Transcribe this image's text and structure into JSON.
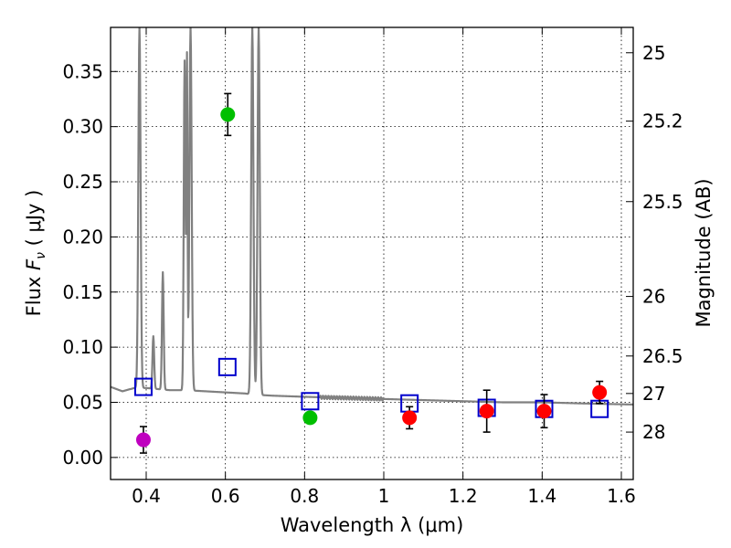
{
  "chart_data": {
    "type": "scatter",
    "title": "",
    "xlabel": "Wavelength  λ (μm)",
    "ylabel": "Flux  F_ν  ( μJy )",
    "ylabel_parts": {
      "prefix": "Flux  ",
      "symbol": "F",
      "subscript": "ν",
      "unit": "  ( μJy )"
    },
    "y2label": "Magnitude (AB)",
    "xlim": [
      0.31,
      1.63
    ],
    "ylim": [
      -0.02,
      0.39
    ],
    "grid": true,
    "grid_style": "dotted",
    "xticks": [
      {
        "value": 0.4,
        "label": "0.4"
      },
      {
        "value": 0.6,
        "label": "0.6"
      },
      {
        "value": 0.8,
        "label": "0.8"
      },
      {
        "value": 1.0,
        "label": "1"
      },
      {
        "value": 1.2,
        "label": "1.2"
      },
      {
        "value": 1.4,
        "label": "1.4"
      },
      {
        "value": 1.6,
        "label": "1.6"
      }
    ],
    "yticks": [
      {
        "value": 0.0,
        "label": "0.00"
      },
      {
        "value": 0.05,
        "label": "0.05"
      },
      {
        "value": 0.1,
        "label": "0.10"
      },
      {
        "value": 0.15,
        "label": "0.15"
      },
      {
        "value": 0.2,
        "label": "0.20"
      },
      {
        "value": 0.25,
        "label": "0.25"
      },
      {
        "value": 0.3,
        "label": "0.30"
      },
      {
        "value": 0.35,
        "label": "0.35"
      }
    ],
    "y2ticks": [
      {
        "flux": 0.367,
        "label": "25"
      },
      {
        "flux": 0.305,
        "label": "25.2"
      },
      {
        "flux": 0.232,
        "label": "25.5"
      },
      {
        "flux": 0.146,
        "label": "26"
      },
      {
        "flux": 0.092,
        "label": "26.5"
      },
      {
        "flux": 0.058,
        "label": "27"
      },
      {
        "flux": 0.023,
        "label": "28"
      }
    ],
    "series": [
      {
        "kind": "spectrum",
        "color": "#808080",
        "continuum": [
          [
            0.31,
            0.064
          ],
          [
            0.34,
            0.06
          ],
          [
            0.37,
            0.063
          ],
          [
            0.4,
            0.063
          ],
          [
            0.43,
            0.062
          ],
          [
            0.46,
            0.061
          ],
          [
            0.5,
            0.061
          ],
          [
            0.55,
            0.06
          ],
          [
            0.6,
            0.059
          ],
          [
            0.65,
            0.058
          ],
          [
            0.67,
            0.057
          ],
          [
            0.72,
            0.056
          ],
          [
            0.8,
            0.055
          ],
          [
            0.9,
            0.054
          ],
          [
            1.0,
            0.053
          ],
          [
            1.1,
            0.052
          ],
          [
            1.2,
            0.051
          ],
          [
            1.3,
            0.05
          ],
          [
            1.4,
            0.05
          ],
          [
            1.5,
            0.049
          ],
          [
            1.63,
            0.048
          ]
        ],
        "lines": [
          {
            "x": 0.383,
            "peak": 0.39,
            "width": 0.004
          },
          {
            "x": 0.418,
            "peak": 0.11,
            "width": 0.003
          },
          {
            "x": 0.442,
            "peak": 0.168,
            "width": 0.003
          },
          {
            "x": 0.497,
            "peak": 0.36,
            "width": 0.003
          },
          {
            "x": 0.503,
            "peak": 0.36,
            "width": 0.002
          },
          {
            "x": 0.512,
            "peak": 0.39,
            "width": 0.004
          },
          {
            "x": 0.668,
            "peak": 0.39,
            "width": 0.004
          },
          {
            "x": 0.684,
            "peak": 0.39,
            "width": 0.004
          }
        ]
      },
      {
        "kind": "model-photometry",
        "marker": "open-square",
        "color": "#0000cc",
        "points": [
          {
            "x": 0.393,
            "y": 0.064
          },
          {
            "x": 0.605,
            "y": 0.082
          },
          {
            "x": 0.814,
            "y": 0.051
          },
          {
            "x": 1.065,
            "y": 0.049
          },
          {
            "x": 1.26,
            "y": 0.045
          },
          {
            "x": 1.405,
            "y": 0.044
          },
          {
            "x": 1.545,
            "y": 0.044
          }
        ]
      },
      {
        "kind": "observed",
        "marker": "filled-circle",
        "color": "#bf00bf",
        "points": [
          {
            "x": 0.393,
            "y": 0.016,
            "err": 0.012
          }
        ]
      },
      {
        "kind": "observed",
        "marker": "filled-circle",
        "color": "#00bf00",
        "points": [
          {
            "x": 0.606,
            "y": 0.311,
            "err": 0.019
          },
          {
            "x": 0.814,
            "y": 0.036,
            "err": 0.005
          }
        ]
      },
      {
        "kind": "observed",
        "marker": "filled-circle",
        "color": "#ff0000",
        "points": [
          {
            "x": 1.065,
            "y": 0.036,
            "err": 0.01
          },
          {
            "x": 1.26,
            "y": 0.042,
            "err": 0.019
          },
          {
            "x": 1.405,
            "y": 0.042,
            "err": 0.015
          },
          {
            "x": 1.545,
            "y": 0.059,
            "err": 0.01
          }
        ]
      }
    ]
  }
}
